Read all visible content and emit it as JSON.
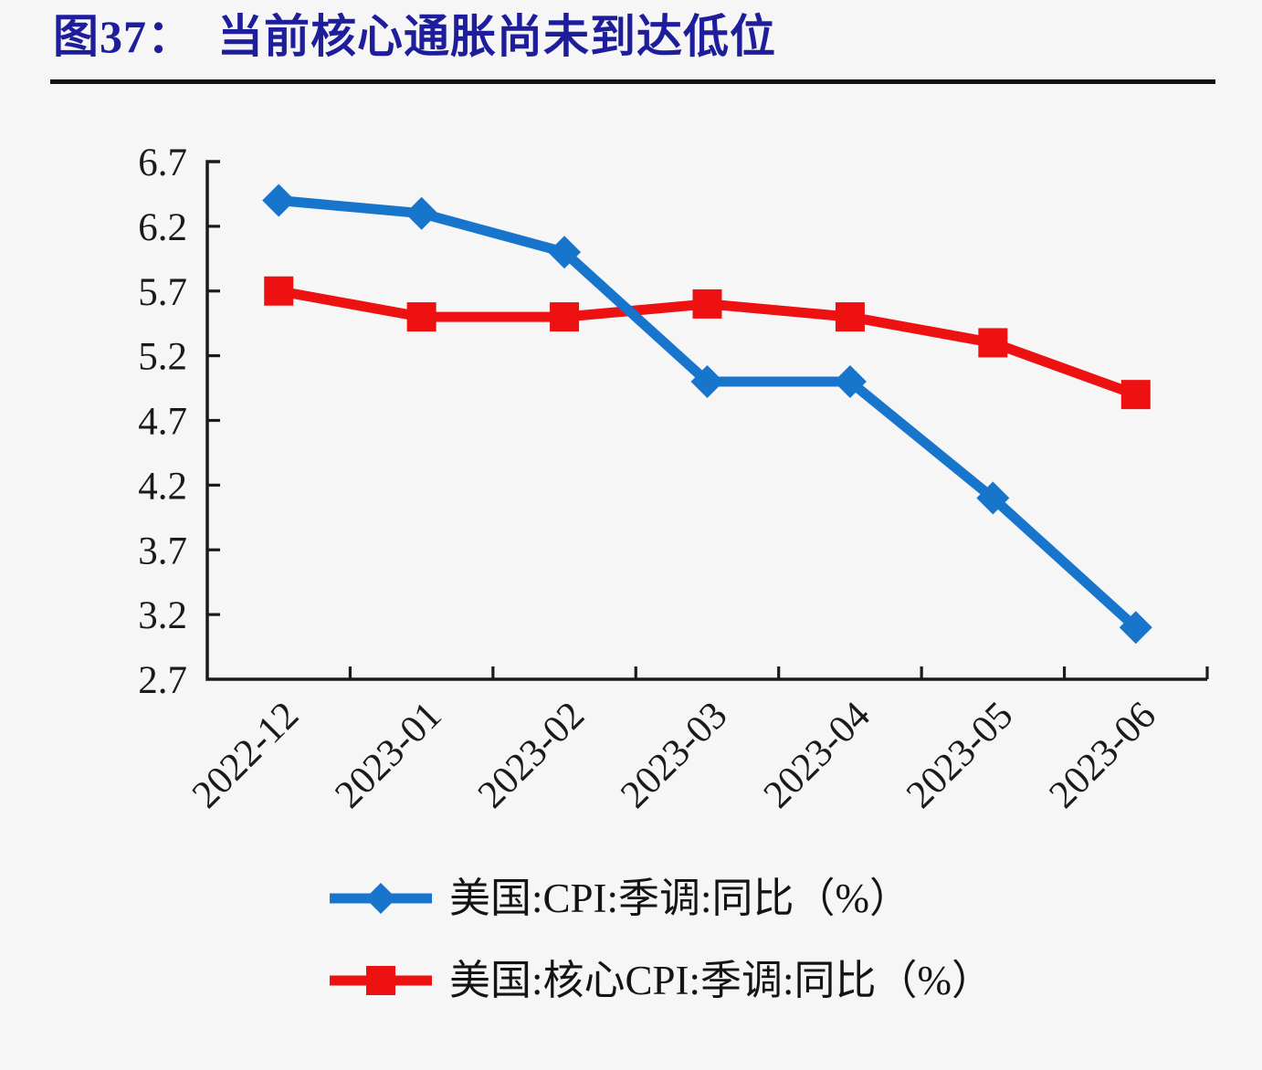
{
  "header": {
    "title": "图37：　当前核心通胀尚未到达低位"
  },
  "chart_data": {
    "type": "line",
    "title": "图37：　当前核心通胀尚未到达低位",
    "categories": [
      "2022-12",
      "2023-01",
      "2023-02",
      "2023-03",
      "2023-04",
      "2023-05",
      "2023-06"
    ],
    "series": [
      {
        "name": "美国:CPI:季调:同比（%）",
        "marker": "diamond",
        "color": "#1776cb",
        "values": [
          6.4,
          6.3,
          6.0,
          5.0,
          5.0,
          4.1,
          3.1
        ]
      },
      {
        "name": "美国:核心CPI:季调:同比（%）",
        "marker": "square",
        "color": "#ed1111",
        "values": [
          5.7,
          5.5,
          5.5,
          5.6,
          5.5,
          5.3,
          4.9
        ]
      }
    ],
    "xlabel": "",
    "ylabel": "",
    "ylim": [
      2.7,
      6.7
    ],
    "ytick_step": 0.5,
    "yticks": [
      "6.7",
      "6.2",
      "5.7",
      "5.2",
      "4.7",
      "4.2",
      "3.7",
      "3.2",
      "2.7"
    ],
    "xtick_rotation_deg": -45,
    "grid": false,
    "legend_position": "bottom-left",
    "axis_color": "#1a1a1a",
    "text_color": "#1a1a1a",
    "title_color": "#1e1e9c",
    "background_color": "#f6f6f7"
  }
}
